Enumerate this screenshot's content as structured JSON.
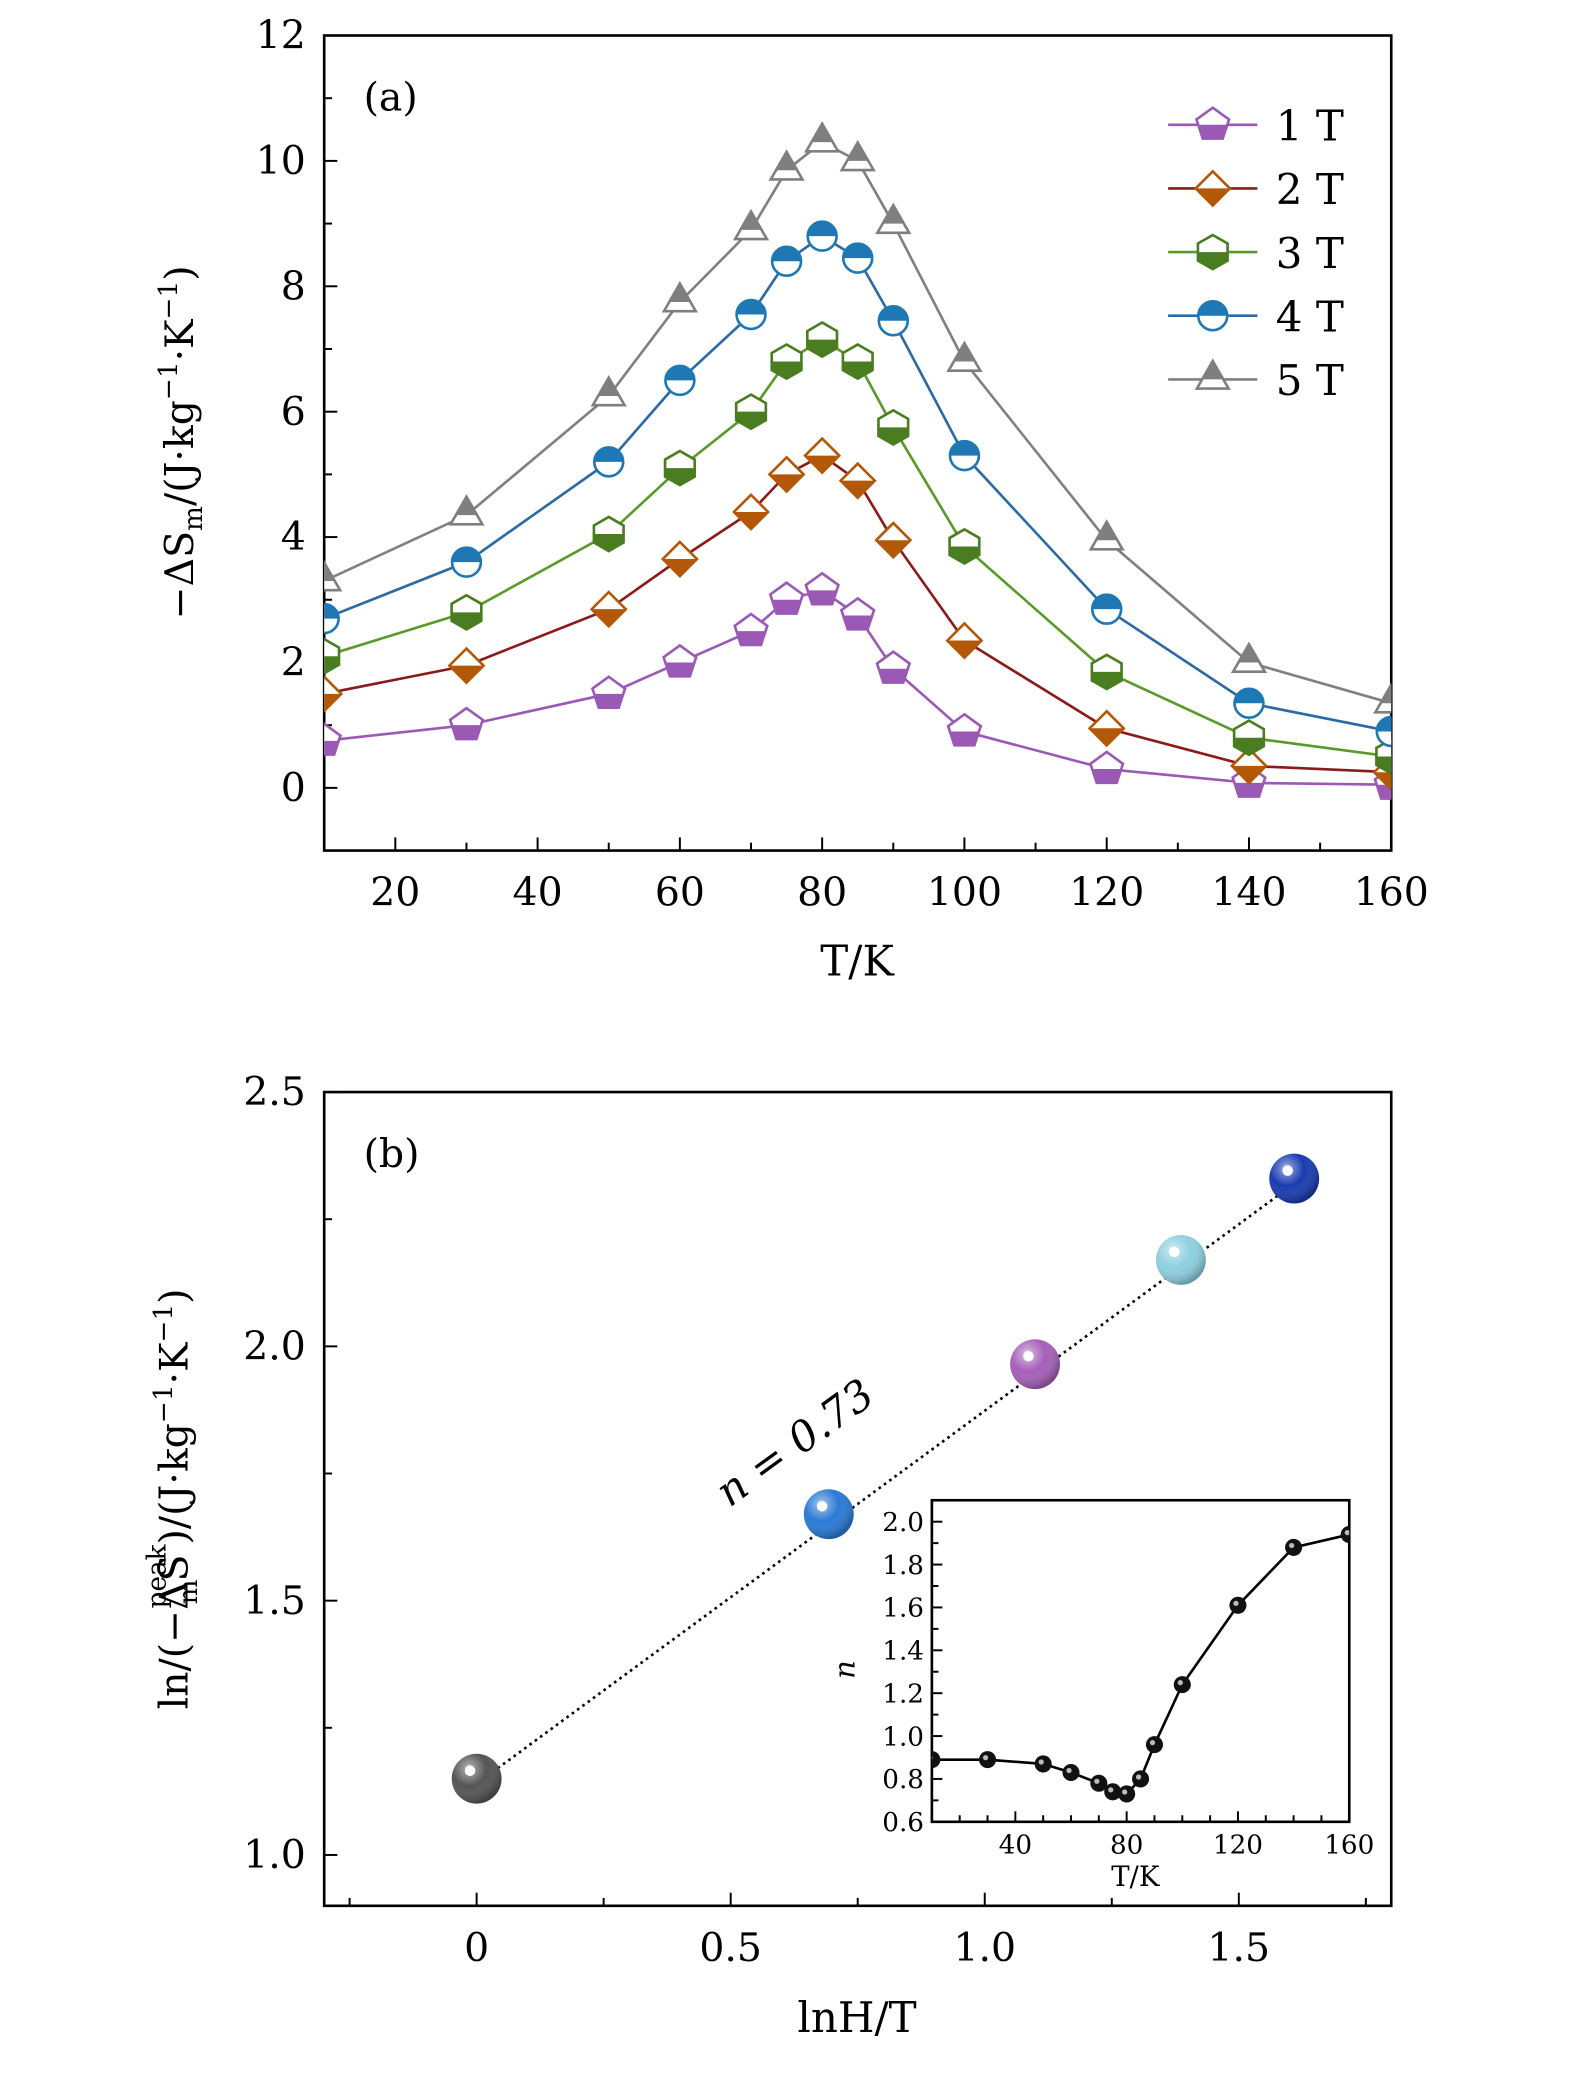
{
  "chart_data": [
    {
      "type": "line",
      "panel_label": "(a)",
      "xlabel": "T/K",
      "ylabel": "−ΔS_m/(J·kg⁻¹·K⁻¹)",
      "ylabel_parts": {
        "pre": "−ΔS",
        "sub": "m",
        "post": "/(J·kg",
        "exp1": "−1",
        "mid": "·K",
        "exp2": "−1",
        "end": ")"
      },
      "xlim": [
        10,
        160
      ],
      "ylim": [
        -1,
        12
      ],
      "xticks": [
        20,
        40,
        60,
        80,
        100,
        120,
        140,
        160
      ],
      "yticks": [
        0,
        2,
        4,
        6,
        8,
        10,
        12
      ],
      "legend_position": "top-right",
      "x": [
        10,
        30,
        50,
        60,
        70,
        75,
        80,
        85,
        90,
        100,
        120,
        140,
        160
      ],
      "series": [
        {
          "name": "1 T",
          "marker": "pentagon",
          "color": "#9b59b6",
          "line_color": "#9b59b6",
          "values": [
            0.75,
            1.0,
            1.5,
            2.0,
            2.5,
            3.0,
            3.15,
            2.75,
            1.9,
            0.9,
            0.3,
            0.08,
            0.05
          ]
        },
        {
          "name": "2 T",
          "marker": "diamond",
          "color": "#b35806",
          "line_color": "#8b1a1a",
          "values": [
            1.5,
            1.95,
            2.85,
            3.65,
            4.4,
            5.0,
            5.3,
            4.9,
            3.95,
            2.35,
            0.95,
            0.35,
            0.25
          ]
        },
        {
          "name": "3 T",
          "marker": "hexagon",
          "color": "#4a7d20",
          "line_color": "#5a9a2a",
          "values": [
            2.1,
            2.8,
            4.05,
            5.1,
            6.0,
            6.8,
            7.15,
            6.8,
            5.75,
            3.85,
            1.85,
            0.8,
            0.5
          ]
        },
        {
          "name": "4 T",
          "marker": "circle",
          "color": "#1f77b4",
          "line_color": "#2b6aa5",
          "values": [
            2.7,
            3.6,
            5.2,
            6.5,
            7.55,
            8.4,
            8.8,
            8.45,
            7.45,
            5.3,
            2.85,
            1.35,
            0.9
          ]
        },
        {
          "name": "5 T",
          "marker": "triangle",
          "color": "#7f7f7f",
          "line_color": "#808080",
          "values": [
            3.3,
            4.35,
            6.25,
            7.75,
            8.9,
            9.85,
            10.3,
            10.0,
            9.0,
            6.8,
            3.95,
            2.0,
            1.35
          ]
        }
      ]
    },
    {
      "type": "scatter",
      "panel_label": "(b)",
      "xlabel": "lnH/T",
      "ylabel_parts": {
        "pre": "ln/(−ΔS",
        "sub": "m",
        "sup": "peak",
        "post": ")/(J·kg",
        "exp1": "−1",
        "mid": "·K",
        "exp2": "−1",
        "end": ")"
      },
      "xlim": [
        -0.3,
        1.8
      ],
      "ylim": [
        0.9,
        2.5
      ],
      "xticks": [
        0,
        0.5,
        1.0,
        1.5
      ],
      "xtick_labels": [
        "0",
        "0.5",
        "1.0",
        "1.5"
      ],
      "yticks": [
        1.0,
        1.5,
        2.0,
        2.5
      ],
      "ytick_labels": [
        "1.0",
        "1.5",
        "2.0",
        "2.5"
      ],
      "points": [
        {
          "x": 0,
          "y": 1.15,
          "color": "#555555"
        },
        {
          "x": 0.693,
          "y": 1.67,
          "color": "#2a7ad5"
        },
        {
          "x": 1.099,
          "y": 1.965,
          "color": "#a560b8"
        },
        {
          "x": 1.386,
          "y": 2.17,
          "color": "#8ecfe0"
        },
        {
          "x": 1.609,
          "y": 2.33,
          "color": "#1a3cb0"
        }
      ],
      "fit": {
        "x": [
          0,
          1.609
        ],
        "y": [
          1.14,
          2.32
        ],
        "style": "dotted"
      },
      "annotation": "n = 0.73"
    },
    {
      "type": "line",
      "role": "inset",
      "xlabel": "T/K",
      "ylabel": "n",
      "xlim": [
        10,
        160
      ],
      "ylim": [
        0.6,
        2.1
      ],
      "xticks": [
        40,
        80,
        120,
        160
      ],
      "yticks": [
        0.6,
        0.8,
        1.0,
        1.2,
        1.4,
        1.6,
        1.8,
        2.0
      ],
      "ytick_labels": [
        "0.6",
        "0.8",
        "1.0",
        "1.2",
        "1.4",
        "1.6",
        "1.8",
        "2.0"
      ],
      "x": [
        10,
        30,
        50,
        60,
        70,
        75,
        80,
        85,
        90,
        100,
        120,
        140,
        160
      ],
      "values": [
        0.89,
        0.89,
        0.87,
        0.83,
        0.78,
        0.74,
        0.73,
        0.8,
        0.96,
        1.24,
        1.61,
        1.88,
        1.94
      ],
      "color": "#000000"
    }
  ]
}
